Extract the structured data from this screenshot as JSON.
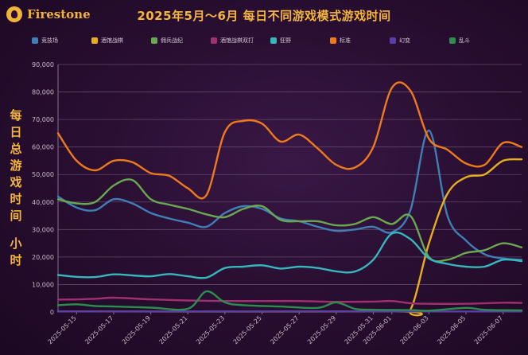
{
  "brand": "Firestone",
  "chart_data": {
    "type": "line",
    "title": "2025年5月～6月 每日不同游戏模式游戏时间",
    "ylabel_main": "每日总游戏时间",
    "ylabel_unit": "小时",
    "ylim": [
      0,
      90000
    ],
    "yticks": [
      "0",
      "10,000",
      "20,000",
      "30,000",
      "40,000",
      "50,000",
      "60,000",
      "70,000",
      "80,000",
      "90,000"
    ],
    "x_start": "2025-05-14",
    "x_end": "2025-06-08",
    "xticks": [
      "2025-05-15",
      "2025-05-17",
      "2025-05-19",
      "2025-05-21",
      "2025-05-23",
      "2025-05-25",
      "2025-05-27",
      "2025-05-29",
      "2025-05-31",
      "2025-06-01",
      "2025-06-03",
      "2025-06-05",
      "2025-06-07"
    ],
    "grid": true,
    "legend_position": "top",
    "series": [
      {
        "name": "竞技场",
        "color": "#3f7fb5",
        "points": [
          [
            "2025-05-14",
            42000
          ],
          [
            "2025-05-15",
            38000
          ],
          [
            "2025-05-16",
            37000
          ],
          [
            "2025-05-17",
            41000
          ],
          [
            "2025-05-18",
            39500
          ],
          [
            "2025-05-19",
            36000
          ],
          [
            "2025-05-20",
            34000
          ],
          [
            "2025-05-21",
            32500
          ],
          [
            "2025-05-22",
            31000
          ],
          [
            "2025-05-23",
            36000
          ],
          [
            "2025-05-24",
            38500
          ],
          [
            "2025-05-25",
            37500
          ],
          [
            "2025-05-26",
            34000
          ],
          [
            "2025-05-27",
            33000
          ],
          [
            "2025-05-28",
            31000
          ],
          [
            "2025-05-29",
            29500
          ],
          [
            "2025-05-30",
            30000
          ],
          [
            "2025-05-31",
            31000
          ],
          [
            "2025-06-01",
            29000
          ],
          [
            "2025-06-02",
            37000
          ],
          [
            "2025-06-03",
            66000
          ],
          [
            "2025-06-04",
            35000
          ],
          [
            "2025-06-05",
            26000
          ],
          [
            "2025-06-06",
            21000
          ],
          [
            "2025-06-07",
            19500
          ],
          [
            "2025-06-08",
            19000
          ]
        ]
      },
      {
        "name": "酒馆战棋",
        "color": "#e8b018",
        "points": [
          [
            "2025-05-14",
            200
          ],
          [
            "2025-06-01",
            200
          ],
          [
            "2025-06-02",
            800
          ],
          [
            "2025-06-03",
            25000
          ],
          [
            "2025-06-04",
            43000
          ],
          [
            "2025-06-05",
            49000
          ],
          [
            "2025-06-06",
            50000
          ],
          [
            "2025-06-07",
            55000
          ],
          [
            "2025-06-08",
            55500
          ]
        ]
      },
      {
        "name": "佣兵战纪",
        "color": "#6aa84f",
        "points": [
          [
            "2025-05-14",
            41000
          ],
          [
            "2025-05-15",
            39500
          ],
          [
            "2025-05-16",
            40000
          ],
          [
            "2025-05-17",
            46000
          ],
          [
            "2025-05-18",
            48000
          ],
          [
            "2025-05-19",
            41000
          ],
          [
            "2025-05-20",
            39000
          ],
          [
            "2025-05-21",
            37500
          ],
          [
            "2025-05-22",
            35500
          ],
          [
            "2025-05-23",
            34500
          ],
          [
            "2025-05-24",
            37500
          ],
          [
            "2025-05-25",
            38500
          ],
          [
            "2025-05-26",
            33500
          ],
          [
            "2025-05-27",
            33000
          ],
          [
            "2025-05-28",
            33000
          ],
          [
            "2025-05-29",
            31500
          ],
          [
            "2025-05-30",
            32000
          ],
          [
            "2025-05-31",
            34500
          ],
          [
            "2025-06-01",
            32000
          ],
          [
            "2025-06-02",
            35000
          ],
          [
            "2025-06-03",
            20000
          ],
          [
            "2025-06-04",
            19000
          ],
          [
            "2025-06-05",
            21500
          ],
          [
            "2025-06-06",
            22500
          ],
          [
            "2025-06-07",
            25000
          ],
          [
            "2025-06-08",
            23500
          ]
        ]
      },
      {
        "name": "酒馆战棋双打",
        "color": "#a03070",
        "points": [
          [
            "2025-05-14",
            4500
          ],
          [
            "2025-05-16",
            4800
          ],
          [
            "2025-05-17",
            5200
          ],
          [
            "2025-05-19",
            4600
          ],
          [
            "2025-05-21",
            4200
          ],
          [
            "2025-05-23",
            4000
          ],
          [
            "2025-05-25",
            4000
          ],
          [
            "2025-05-27",
            4000
          ],
          [
            "2025-05-29",
            3700
          ],
          [
            "2025-05-31",
            3800
          ],
          [
            "2025-06-01",
            4000
          ],
          [
            "2025-06-02",
            3200
          ],
          [
            "2025-06-03",
            3000
          ],
          [
            "2025-06-05",
            3000
          ],
          [
            "2025-06-07",
            3400
          ],
          [
            "2025-06-08",
            3300
          ]
        ]
      },
      {
        "name": "狂野",
        "color": "#35b7bc",
        "points": [
          [
            "2025-05-14",
            13500
          ],
          [
            "2025-05-15",
            12800
          ],
          [
            "2025-05-16",
            12700
          ],
          [
            "2025-05-17",
            13700
          ],
          [
            "2025-05-18",
            13300
          ],
          [
            "2025-05-19",
            13000
          ],
          [
            "2025-05-20",
            13800
          ],
          [
            "2025-05-21",
            13000
          ],
          [
            "2025-05-22",
            12500
          ],
          [
            "2025-05-23",
            16000
          ],
          [
            "2025-05-24",
            16500
          ],
          [
            "2025-05-25",
            17000
          ],
          [
            "2025-05-26",
            15800
          ],
          [
            "2025-05-27",
            16500
          ],
          [
            "2025-05-28",
            16000
          ],
          [
            "2025-05-29",
            14800
          ],
          [
            "2025-05-30",
            14700
          ],
          [
            "2025-05-31",
            19000
          ],
          [
            "2025-06-01",
            28500
          ],
          [
            "2025-06-02",
            26500
          ],
          [
            "2025-06-03",
            19500
          ],
          [
            "2025-06-04",
            17500
          ],
          [
            "2025-06-05",
            16500
          ],
          [
            "2025-06-06",
            16500
          ],
          [
            "2025-06-07",
            19000
          ],
          [
            "2025-06-08",
            18500
          ]
        ]
      },
      {
        "name": "标准",
        "color": "#ee7a1a",
        "points": [
          [
            "2025-05-14",
            65000
          ],
          [
            "2025-05-15",
            55000
          ],
          [
            "2025-05-16",
            51500
          ],
          [
            "2025-05-17",
            55000
          ],
          [
            "2025-05-18",
            54500
          ],
          [
            "2025-05-19",
            50500
          ],
          [
            "2025-05-20",
            49500
          ],
          [
            "2025-05-21",
            45000
          ],
          [
            "2025-05-22",
            42500
          ],
          [
            "2025-05-23",
            65500
          ],
          [
            "2025-05-24",
            69500
          ],
          [
            "2025-05-25",
            68500
          ],
          [
            "2025-05-26",
            62000
          ],
          [
            "2025-05-27",
            64500
          ],
          [
            "2025-05-28",
            59500
          ],
          [
            "2025-05-29",
            53500
          ],
          [
            "2025-05-30",
            52500
          ],
          [
            "2025-05-31",
            60000
          ],
          [
            "2025-06-01",
            81500
          ],
          [
            "2025-06-02",
            80500
          ],
          [
            "2025-06-03",
            63000
          ],
          [
            "2025-06-04",
            59000
          ],
          [
            "2025-06-05",
            54000
          ],
          [
            "2025-06-06",
            53500
          ],
          [
            "2025-06-07",
            61500
          ],
          [
            "2025-06-08",
            60000
          ]
        ]
      },
      {
        "name": "幻变",
        "color": "#5a3fa8",
        "points": [
          [
            "2025-05-14",
            200
          ],
          [
            "2025-06-08",
            200
          ]
        ]
      },
      {
        "name": "乱斗",
        "color": "#2a8f4e",
        "points": [
          [
            "2025-05-14",
            2500
          ],
          [
            "2025-05-15",
            2800
          ],
          [
            "2025-05-16",
            2200
          ],
          [
            "2025-05-17",
            2000
          ],
          [
            "2025-05-19",
            1600
          ],
          [
            "2025-05-21",
            1200
          ],
          [
            "2025-05-22",
            7500
          ],
          [
            "2025-05-23",
            3500
          ],
          [
            "2025-05-24",
            2500
          ],
          [
            "2025-05-26",
            2000
          ],
          [
            "2025-05-28",
            1500
          ],
          [
            "2025-05-29",
            3500
          ],
          [
            "2025-05-30",
            1200
          ],
          [
            "2025-05-31",
            800
          ],
          [
            "2025-06-02",
            700
          ],
          [
            "2025-06-03",
            500
          ],
          [
            "2025-06-05",
            1500
          ],
          [
            "2025-06-06",
            800
          ],
          [
            "2025-06-08",
            600
          ]
        ]
      }
    ]
  }
}
